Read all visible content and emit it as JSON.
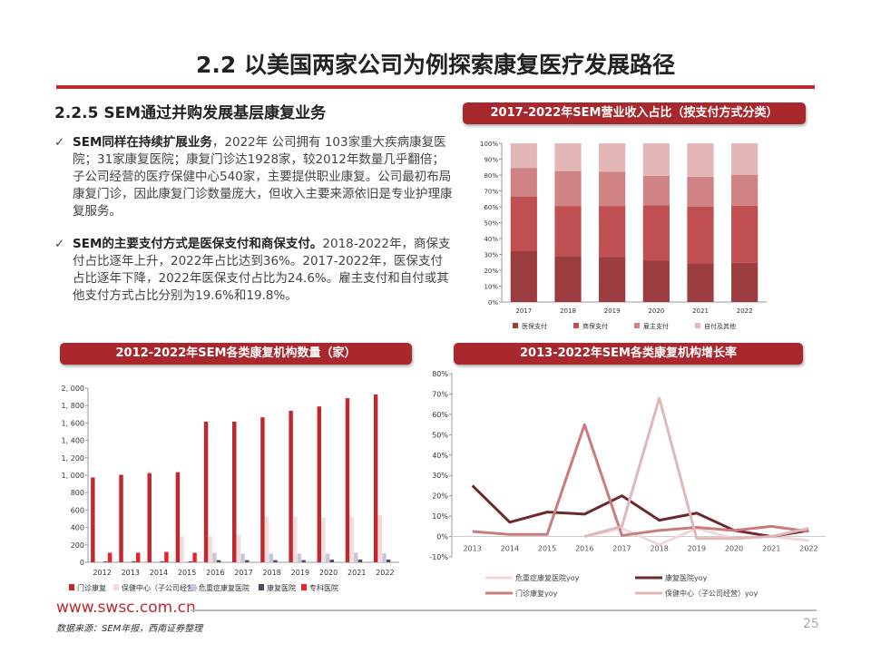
{
  "title": "2.2 以美国两家公司为例探索康复医疗发展路径",
  "subheading": "2.2.5 SEM通过并购发展基层康复业务",
  "bullets": [
    {
      "icon": "checkmark-icon",
      "bold": "SEM同样在持续扩展业务",
      "text": "，2022年 公司拥有 103家重大疾病康复医院；31家康复医院；康复门诊达1928家，较2012年数量几乎翻倍；子公司经营的医疗保健中心540家，主要提供职业康复。公司最初布局康复门诊，因此康复门诊数量庞大，但收入主要来源依旧是专业护理康复服务。"
    },
    {
      "icon": "checkmark-icon",
      "bold": "SEM的主要支付方式是医保支付和商保支付。",
      "text": "2018-2022年，商保支付占比逐年上升，2022年占比达到36%。2017-2022年，医保支付占比逐年下降，2022年医保支付占比为24.6%。雇主支付和自付或其他支付方式占比分别为19.6%和19.8%。"
    }
  ],
  "footer": {
    "site": "www.swsc.com.cn",
    "source": "数据来源：SEM年报，西南证券整理",
    "page": "25"
  },
  "chart_data": [
    {
      "type": "bar",
      "stacked": true,
      "title": "2017-2022年SEM营业收入占比（按支付方式分类）",
      "categories": [
        "2017",
        "2018",
        "2019",
        "2020",
        "2021",
        "2022"
      ],
      "ylim": [
        0,
        100
      ],
      "yticks": [
        "0%",
        "10%",
        "20%",
        "30%",
        "40%",
        "50%",
        "60%",
        "70%",
        "80%",
        "90%",
        "100%"
      ],
      "legend": "bottom",
      "series": [
        {
          "name": "医保支付",
          "color": "#9b3c3e",
          "values": [
            32,
            29,
            28.5,
            26,
            24,
            24.6
          ]
        },
        {
          "name": "商保支付",
          "color": "#bf4f51",
          "values": [
            34.5,
            31.5,
            32,
            35,
            36,
            36
          ]
        },
        {
          "name": "雇主支付",
          "color": "#cf8384",
          "values": [
            18,
            22,
            21.5,
            18.5,
            19,
            19.6
          ]
        },
        {
          "name": "自付及其他",
          "color": "#e3b7b8",
          "values": [
            15.5,
            17.5,
            18,
            20.5,
            21,
            19.8
          ]
        }
      ]
    },
    {
      "type": "bar",
      "title": "2012-2022年SEM各类康复机构数量（家）",
      "categories": [
        "2012",
        "2013",
        "2014",
        "2015",
        "2016",
        "2017",
        "2018",
        "2019",
        "2020",
        "2021",
        "2022"
      ],
      "ylim": [
        0,
        2000
      ],
      "yticks": [
        "0",
        "200",
        "400",
        "600",
        "800",
        "1, 000",
        "1, 200",
        "1, 400",
        "1, 600",
        "1, 800",
        "2, 000"
      ],
      "legend": "bottom",
      "series": [
        {
          "name": "门诊康复",
          "color": "#c0282d",
          "values": [
            975,
            1005,
            1025,
            1035,
            1615,
            1615,
            1665,
            1740,
            1790,
            1885,
            1928
          ]
        },
        {
          "name": "保健中心（子公司经营）",
          "color": "#f3dcdc",
          "values": [
            0,
            0,
            0,
            300,
            300,
            315,
            525,
            525,
            515,
            520,
            540
          ]
        },
        {
          "name": "危重症康复医院",
          "color": "#c9c6dc",
          "values": [
            0,
            0,
            0,
            0,
            110,
            100,
            100,
            100,
            100,
            110,
            103
          ]
        },
        {
          "name": "康复医院",
          "color": "#4e4a6a",
          "values": [
            10,
            12,
            12,
            12,
            25,
            25,
            25,
            25,
            30,
            31,
            31
          ]
        },
        {
          "name": "专科医院",
          "color": "#e8232a",
          "values": [
            110,
            110,
            120,
            110,
            0,
            0,
            0,
            0,
            0,
            0,
            0
          ]
        }
      ]
    },
    {
      "type": "line",
      "title": "2013-2022年SEM各类康复机构增长率",
      "categories": [
        "2013",
        "2014",
        "2015",
        "2016",
        "2017",
        "2018",
        "2019",
        "2020",
        "2021",
        "2022"
      ],
      "ylim": [
        -10,
        80
      ],
      "yticks": [
        "-10%",
        "0%",
        "10%",
        "20%",
        "30%",
        "40%",
        "50%",
        "60%",
        "70%",
        "80%"
      ],
      "legend": "bottom",
      "series": [
        {
          "name": "危重症康复医院yoy",
          "color": "#f0d8d8",
          "values": [
            null,
            null,
            null,
            0,
            4,
            -4,
            4,
            -1,
            0,
            -2
          ]
        },
        {
          "name": "康复医院yoy",
          "color": "#6b2a2c",
          "values": [
            25,
            7,
            12,
            11,
            20,
            8,
            11.5,
            3,
            0,
            3
          ]
        },
        {
          "name": "门诊康复yoy",
          "color": "#c97b7d",
          "values": [
            2.5,
            1,
            1,
            55,
            0.5,
            3,
            4.5,
            3,
            5,
            2.5
          ]
        },
        {
          "name": "保健中心（子公司经营）yoy",
          "color": "#e0b8b9",
          "values": [
            null,
            null,
            null,
            0,
            5,
            68,
            -1,
            -1,
            0,
            4
          ]
        }
      ]
    }
  ]
}
